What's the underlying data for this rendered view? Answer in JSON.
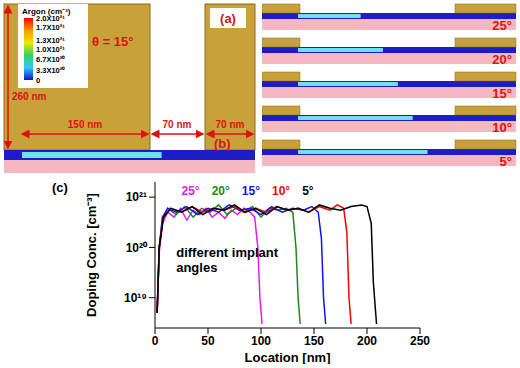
{
  "panel_a": {
    "label": "(a)",
    "angle": "θ = 15°",
    "colorbar": {
      "title": "Argon (cm⁻³)",
      "range": [
        0,
        2e+21
      ],
      "ticks": [
        {
          "value": 2e+21,
          "label": "2.0X10²¹"
        },
        {
          "value": 1.7e+21,
          "label": "1.7X10²¹"
        },
        {
          "value": 1.3e+21,
          "label": "1.3X10²¹"
        },
        {
          "value": 1e+21,
          "label": "1.0X10²¹"
        },
        {
          "value": 6.7e+20,
          "label": "6.7X10²⁰"
        },
        {
          "value": 3.3e+20,
          "label": "3.3X10²⁰"
        },
        0
      ]
    },
    "dimensions": [
      "260 nm",
      "150 nm",
      "70 nm",
      "70 nm"
    ]
  },
  "panel_b": {
    "label": "(b)",
    "angles": [
      "25°",
      "20°",
      "15°",
      "10°",
      "5°"
    ]
  },
  "chart_data": {
    "type": "line",
    "label": "(c)",
    "x_label": "Location [nm]",
    "y_label": "Doping Conc. [cm⁻³]",
    "annotation": "different implant angles",
    "log": "y",
    "legend": "top",
    "xlim": [
      0,
      250
    ],
    "xticks": [
      0,
      50,
      100,
      150,
      200,
      250
    ],
    "ylim": [
      2.5e+18,
      2e+21
    ],
    "yticks": [
      {
        "value": 1e+19,
        "label": "10¹⁹"
      },
      {
        "value": 1e+20,
        "label": "10²⁰"
      },
      {
        "value": 1e+21,
        "label": "10²¹"
      }
    ],
    "series": [
      {
        "name": "25°",
        "color": "#e020e0",
        "x": [
          2,
          4,
          7,
          12,
          18,
          24,
          30,
          36,
          42,
          48,
          54,
          60,
          66,
          72,
          78,
          84,
          90,
          94,
          97,
          99,
          101
        ],
        "values": [
          5e+18,
          8e+19,
          3e+20,
          5e+20,
          4e+20,
          6e+20,
          3.5e+20,
          5.5e+20,
          4.5e+20,
          6e+20,
          4e+20,
          5e+20,
          3.8e+20,
          5.5e+20,
          4.5e+20,
          6e+20,
          5e+20,
          4e+20,
          1e+20,
          1e+19,
          3e+18
        ]
      },
      {
        "name": "20°",
        "color": "#1a8a1a",
        "x": [
          2,
          4,
          7,
          12,
          20,
          28,
          36,
          44,
          52,
          60,
          68,
          76,
          84,
          92,
          100,
          108,
          116,
          124,
          130,
          133,
          135,
          137
        ],
        "values": [
          5e+18,
          1e+20,
          3.5e+20,
          6e+20,
          4.5e+20,
          6.5e+20,
          4e+20,
          6e+20,
          5e+20,
          7e+20,
          4.5e+20,
          6e+20,
          5e+20,
          6.5e+20,
          4e+20,
          6e+20,
          5.5e+20,
          6e+20,
          5e+20,
          1e+20,
          1e+19,
          3e+18
        ]
      },
      {
        "name": "15°",
        "color": "#1010ff",
        "x": [
          2,
          4,
          7,
          12,
          20,
          30,
          40,
          50,
          60,
          70,
          80,
          90,
          100,
          110,
          120,
          130,
          140,
          148,
          154,
          157,
          159,
          161
        ],
        "values": [
          5e+18,
          1e+20,
          4e+20,
          6e+20,
          5e+20,
          6.5e+20,
          4.5e+20,
          6e+20,
          5e+20,
          7e+20,
          5.5e+20,
          6e+20,
          4.5e+20,
          6.5e+20,
          5e+20,
          6e+20,
          5.5e+20,
          6.5e+20,
          5e+20,
          1.5e+20,
          1e+19,
          3e+18
        ]
      },
      {
        "name": "10°",
        "color": "#ff0000",
        "x": [
          2,
          4,
          8,
          15,
          25,
          35,
          45,
          55,
          65,
          75,
          85,
          95,
          105,
          115,
          125,
          135,
          145,
          155,
          165,
          172,
          178,
          181,
          183,
          185
        ],
        "values": [
          5e+18,
          1e+20,
          4e+20,
          6e+20,
          5e+20,
          6.5e+20,
          5e+20,
          6e+20,
          5.5e+20,
          6.5e+20,
          5e+20,
          6e+20,
          5e+20,
          6.5e+20,
          5.5e+20,
          6e+20,
          5e+20,
          6.5e+20,
          5.5e+20,
          7e+20,
          6e+20,
          2e+20,
          1e+19,
          3e+18
        ]
      },
      {
        "name": "5°",
        "color": "#000000",
        "x": [
          2,
          4,
          8,
          15,
          25,
          35,
          45,
          55,
          65,
          75,
          85,
          95,
          105,
          115,
          125,
          135,
          145,
          155,
          165,
          175,
          185,
          195,
          200,
          204,
          206,
          209
        ],
        "values": [
          5e+18,
          1e+20,
          4e+20,
          6e+20,
          5e+20,
          6.5e+20,
          4.5e+20,
          6e+20,
          5.5e+20,
          7e+20,
          5e+20,
          6e+20,
          4.5e+20,
          6.5e+20,
          5.5e+20,
          6e+20,
          5e+20,
          7e+20,
          6e+20,
          5.5e+20,
          6.5e+20,
          7e+20,
          6.5e+20,
          3e+20,
          2e+19,
          3e+18
        ]
      }
    ]
  }
}
